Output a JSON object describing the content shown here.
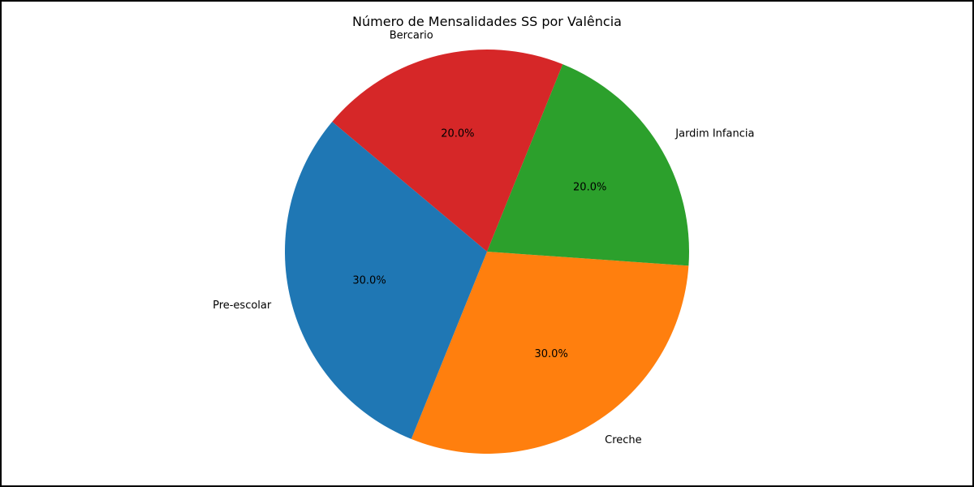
{
  "chart_data": {
    "type": "pie",
    "title": "Número de Mensalidades SS por Valência",
    "categories": [
      "Creche",
      "Jardim Infancia",
      "Bercario",
      "Pre-escolar"
    ],
    "values": [
      30,
      20,
      20,
      30
    ],
    "percent_labels": [
      "30.0%",
      "20.0%",
      "20.0%",
      "30.0%"
    ],
    "colors": [
      "#ff7f0e",
      "#2ca02c",
      "#d62728",
      "#1f77b4"
    ],
    "start_angle_deg": -112,
    "direction": "counterclockwise",
    "legend": "none"
  }
}
